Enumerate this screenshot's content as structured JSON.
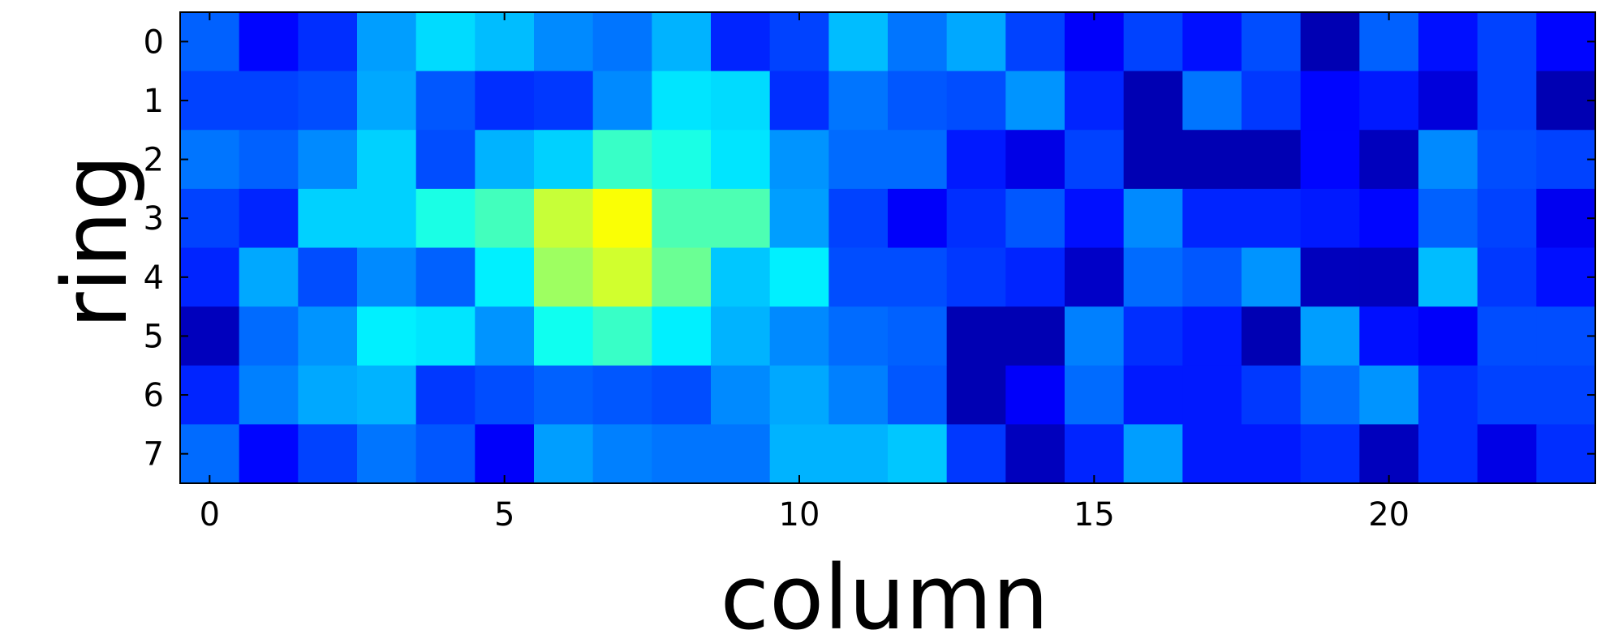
{
  "chart_data": {
    "type": "heatmap",
    "title": "",
    "xlabel": "column",
    "ylabel": "ring",
    "colormap": "jet",
    "value_range": [
      0,
      1
    ],
    "x": [
      0,
      1,
      2,
      3,
      4,
      5,
      6,
      7,
      8,
      9,
      10,
      11,
      12,
      13,
      14,
      15,
      16,
      17,
      18,
      19,
      20,
      21,
      22,
      23
    ],
    "y": [
      0,
      1,
      2,
      3,
      4,
      5,
      6,
      7
    ],
    "x_ticks": [
      "0",
      "5",
      "10",
      "15",
      "20"
    ],
    "x_tick_values": [
      0,
      5,
      10,
      15,
      20
    ],
    "y_ticks": [
      "0",
      "1",
      "2",
      "3",
      "4",
      "5",
      "6",
      "7"
    ],
    "y_tick_values": [
      0,
      1,
      2,
      3,
      4,
      5,
      6,
      7
    ],
    "xlim": [
      -0.5,
      23.5
    ],
    "ylim": [
      7.5,
      -0.5
    ],
    "grid": false,
    "colorbar": false,
    "values": [
      [
        0.22,
        0.13,
        0.17,
        0.28,
        0.34,
        0.31,
        0.26,
        0.24,
        0.3,
        0.16,
        0.19,
        0.31,
        0.24,
        0.29,
        0.19,
        0.12,
        0.19,
        0.14,
        0.2,
        0.05,
        0.22,
        0.14,
        0.19,
        0.13
      ],
      [
        0.19,
        0.19,
        0.2,
        0.29,
        0.21,
        0.17,
        0.18,
        0.26,
        0.35,
        0.34,
        0.17,
        0.24,
        0.21,
        0.2,
        0.27,
        0.16,
        0.05,
        0.24,
        0.18,
        0.13,
        0.15,
        0.09,
        0.19,
        0.05
      ],
      [
        0.24,
        0.22,
        0.26,
        0.33,
        0.2,
        0.3,
        0.33,
        0.43,
        0.4,
        0.35,
        0.27,
        0.23,
        0.23,
        0.15,
        0.1,
        0.19,
        0.05,
        0.05,
        0.05,
        0.13,
        0.06,
        0.26,
        0.2,
        0.19
      ],
      [
        0.19,
        0.16,
        0.33,
        0.33,
        0.4,
        0.44,
        0.57,
        0.62,
        0.45,
        0.45,
        0.28,
        0.19,
        0.12,
        0.17,
        0.21,
        0.14,
        0.26,
        0.16,
        0.16,
        0.15,
        0.13,
        0.22,
        0.19,
        0.11
      ],
      [
        0.16,
        0.29,
        0.2,
        0.26,
        0.22,
        0.36,
        0.53,
        0.58,
        0.48,
        0.32,
        0.36,
        0.2,
        0.2,
        0.18,
        0.16,
        0.07,
        0.23,
        0.21,
        0.27,
        0.06,
        0.06,
        0.31,
        0.18,
        0.14
      ],
      [
        0.06,
        0.23,
        0.27,
        0.36,
        0.35,
        0.27,
        0.39,
        0.43,
        0.36,
        0.3,
        0.26,
        0.23,
        0.22,
        0.05,
        0.05,
        0.25,
        0.17,
        0.15,
        0.05,
        0.28,
        0.14,
        0.12,
        0.2,
        0.2
      ],
      [
        0.16,
        0.25,
        0.29,
        0.3,
        0.18,
        0.2,
        0.22,
        0.21,
        0.2,
        0.26,
        0.29,
        0.25,
        0.21,
        0.05,
        0.12,
        0.23,
        0.15,
        0.15,
        0.18,
        0.23,
        0.27,
        0.17,
        0.19,
        0.19
      ],
      [
        0.23,
        0.13,
        0.19,
        0.24,
        0.21,
        0.12,
        0.28,
        0.25,
        0.24,
        0.24,
        0.3,
        0.3,
        0.32,
        0.18,
        0.06,
        0.16,
        0.28,
        0.15,
        0.15,
        0.17,
        0.06,
        0.17,
        0.1,
        0.17
      ]
    ]
  }
}
